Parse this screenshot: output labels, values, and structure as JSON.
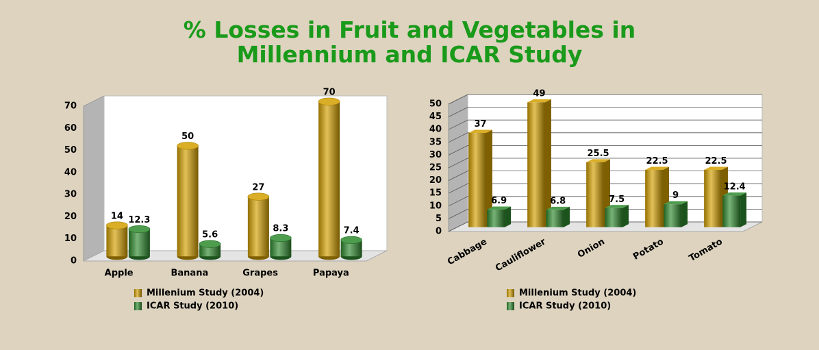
{
  "title": "% Losses in Fruit and Vegetables in Millennium and ICAR Study",
  "chart_data": [
    {
      "type": "bar",
      "shape": "cylinder",
      "grid": false,
      "legend": "bottom",
      "categories": [
        "Apple",
        "Banana",
        "Grapes",
        "Papaya"
      ],
      "series": [
        {
          "name": "Millenium Study (2004)",
          "color": "#d4a000",
          "values": [
            14,
            50,
            27,
            70
          ]
        },
        {
          "name": "ICAR Study (2010)",
          "color": "#2f8a2f",
          "values": [
            12.3,
            5.6,
            8.3,
            7.4
          ]
        }
      ],
      "ylim": [
        0,
        70
      ],
      "yticks": [
        0,
        10,
        20,
        30,
        40,
        50,
        60,
        70
      ]
    },
    {
      "type": "bar",
      "shape": "box",
      "grid": true,
      "legend": "bottom",
      "categories": [
        "Cabbage",
        "Cauliflower",
        "Onion",
        "Potato",
        "Tomato"
      ],
      "series": [
        {
          "name": "Millenium Study (2004)",
          "color": "#d4a000",
          "values": [
            37,
            49,
            25.5,
            22.5,
            22.5
          ]
        },
        {
          "name": "ICAR Study (2010)",
          "color": "#2f8a2f",
          "values": [
            6.9,
            6.8,
            7.5,
            9,
            12.4
          ]
        }
      ],
      "ylim": [
        0,
        50
      ],
      "yticks": [
        0,
        5,
        10,
        15,
        20,
        25,
        30,
        35,
        40,
        45,
        50
      ]
    }
  ]
}
